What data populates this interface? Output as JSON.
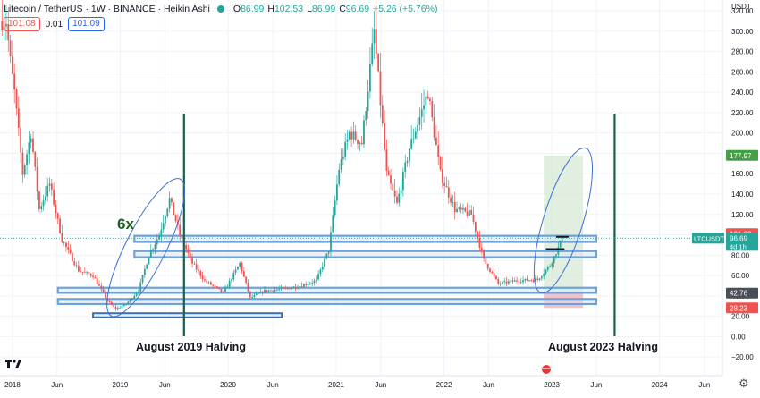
{
  "header": {
    "symbol": "Litecoin / TetherUS · 1W · BINANCE · Heikin Ashi",
    "o_label": "O",
    "o_value": "86.99",
    "h_label": "H",
    "h_value": "102.53",
    "l_label": "L",
    "l_value": "86.99",
    "c_label": "C",
    "c_value": "96.69",
    "change": "+5.26 (+5.76%)",
    "sell_price": "101.08",
    "spread": "0.01",
    "buy_price": "101.09"
  },
  "axis": {
    "currency": "USDT",
    "y_ticks": [
      "320.00",
      "300.00",
      "280.00",
      "260.00",
      "240.00",
      "220.00",
      "200.00",
      "180.00",
      "160.00",
      "140.00",
      "120.00",
      "100.00",
      "80.00",
      "60.00",
      "40.00",
      "20.00",
      "0.00",
      "−20.00"
    ],
    "x_ticks": [
      "2018",
      "Jun",
      "2019",
      "Jun",
      "2020",
      "Jun",
      "2021",
      "Jun",
      "2022",
      "Jun",
      "2023",
      "Jun",
      "2024",
      "Jun"
    ]
  },
  "price_labels": {
    "target": "177.97",
    "ask": "101.08",
    "symbol_tag": "LTCUSDT",
    "last": "96.69",
    "countdown": "4d 1h",
    "entry": "42.76",
    "stop": "28.23"
  },
  "annotations": {
    "multiplier": "6x",
    "halving_2019": "August 2019 Halving",
    "halving_2023": "August 2023 Halving"
  },
  "colors": {
    "up": "#26a69a",
    "down": "#ef5350",
    "zone": "#6fa2d6",
    "halving_line": "#1b5e4f",
    "target_zone": "#d6ead4",
    "stop_zone": "#f4b6bc",
    "annotation_text": "#1b5e20"
  },
  "chart_data": {
    "type": "candlestick",
    "title": "Litecoin / TetherUS · 1W · BINANCE · Heikin Ashi",
    "ylim": [
      -30,
      330
    ],
    "xlim": [
      "2017-11-20",
      "2024-08-01"
    ],
    "close_path": [
      [
        "2017-12-11",
        310
      ],
      [
        "2017-12-25",
        270
      ],
      [
        "2018-01-08",
        240
      ],
      [
        "2018-02-05",
        160
      ],
      [
        "2018-03-05",
        200
      ],
      [
        "2018-04-02",
        125
      ],
      [
        "2018-05-07",
        150
      ],
      [
        "2018-06-18",
        95
      ],
      [
        "2018-08-13",
        65
      ],
      [
        "2018-10-01",
        60
      ],
      [
        "2018-11-19",
        35
      ],
      [
        "2018-12-17",
        27
      ],
      [
        "2019-01-21",
        32
      ],
      [
        "2019-03-04",
        45
      ],
      [
        "2019-04-08",
        80
      ],
      [
        "2019-05-13",
        100
      ],
      [
        "2019-06-17",
        135
      ],
      [
        "2019-07-22",
        100
      ],
      [
        "2019-09-02",
        72
      ],
      [
        "2019-10-14",
        55
      ],
      [
        "2019-12-16",
        43
      ],
      [
        "2020-02-10",
        72
      ],
      [
        "2020-03-16",
        38
      ],
      [
        "2020-05-04",
        45
      ],
      [
        "2020-07-13",
        47
      ],
      [
        "2020-09-07",
        50
      ],
      [
        "2020-10-26",
        55
      ],
      [
        "2020-12-07",
        85
      ],
      [
        "2021-01-11",
        165
      ],
      [
        "2021-02-15",
        200
      ],
      [
        "2021-03-29",
        190
      ],
      [
        "2021-05-10",
        300
      ],
      [
        "2021-06-21",
        160
      ],
      [
        "2021-07-26",
        130
      ],
      [
        "2021-09-06",
        185
      ],
      [
        "2021-11-08",
        240
      ],
      [
        "2021-12-20",
        160
      ],
      [
        "2022-02-07",
        125
      ],
      [
        "2022-04-04",
        120
      ],
      [
        "2022-05-16",
        75
      ],
      [
        "2022-07-04",
        52
      ],
      [
        "2022-09-05",
        55
      ],
      [
        "2022-11-14",
        56
      ],
      [
        "2022-12-26",
        70
      ],
      [
        "2023-01-23",
        87
      ],
      [
        "2023-02-06",
        96.69
      ]
    ],
    "series": [
      {
        "name": "halving",
        "x": "2019-08-05"
      },
      {
        "name": "halving",
        "x": "2023-08-02"
      }
    ],
    "zones": [
      {
        "y": [
          93,
          99
        ],
        "from": "2019-02-18",
        "to": "2023-06-01"
      },
      {
        "y": [
          78,
          84
        ],
        "from": "2019-02-18",
        "to": "2023-06-01"
      },
      {
        "y": [
          43,
          48
        ],
        "from": "2018-06-04",
        "to": "2023-06-01"
      },
      {
        "y": [
          32,
          37
        ],
        "from": "2018-06-04",
        "to": "2023-06-01"
      },
      {
        "y": [
          19,
          23
        ],
        "from": "2018-10-01",
        "to": "2020-07-01"
      }
    ],
    "long_position": {
      "from": "2022-12-05",
      "to": "2023-04-17",
      "entry": 42.76,
      "target": 177.97,
      "stop": 28.23
    },
    "ellipses": [
      {
        "from": [
          "2018-12-10",
          25
        ],
        "to": [
          "2019-07-15",
          150
        ]
      },
      {
        "from": [
          "2022-12-01",
          48
        ],
        "to": [
          "2023-04-20",
          180
        ]
      }
    ],
    "levels": [
      {
        "y": 98,
        "from": "2023-01-16",
        "to": "2023-02-27"
      },
      {
        "y": 86,
        "from": "2022-12-12",
        "to": "2023-02-13"
      }
    ],
    "price_range_days": 10
  }
}
